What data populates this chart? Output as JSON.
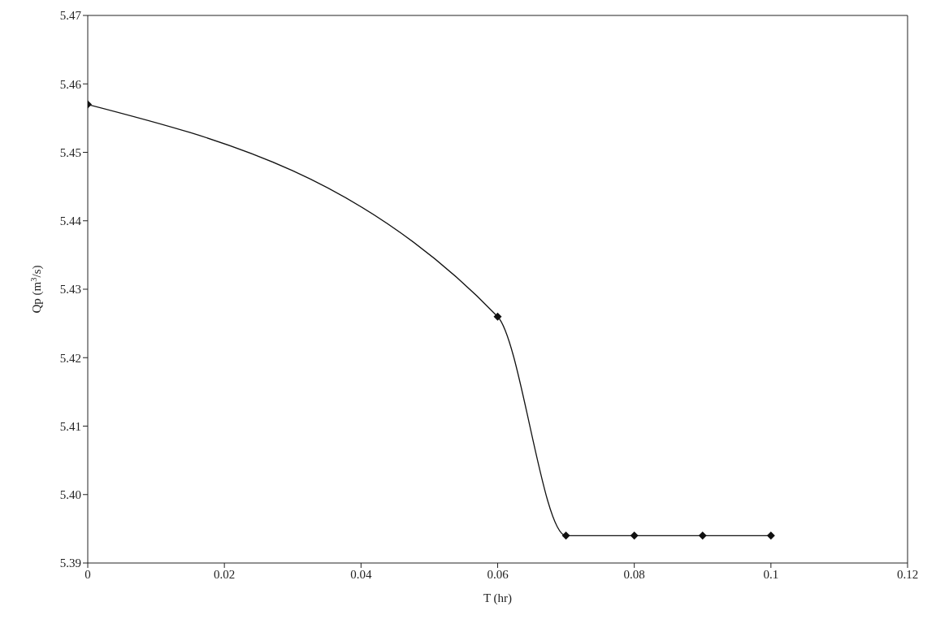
{
  "chart_data": {
    "type": "line",
    "xlabel": "T (hr)",
    "ylabel": "Qp (m$^{3}$/s)",
    "x": [
      0,
      0.06,
      0.07,
      0.08,
      0.09,
      0.1
    ],
    "series": [
      {
        "color": "#111111",
        "values": [
          5.457,
          5.426,
          5.394,
          5.394,
          5.394,
          5.394
        ]
      }
    ],
    "xlim": [
      0,
      0.12
    ],
    "xticks": [
      0,
      0.02,
      0.04,
      0.06,
      0.08,
      {
        "value": 0.1,
        "label": "0.1"
      },
      0.12
    ],
    "ylim": [
      5.39,
      5.47
    ],
    "yticks": [
      {
        "value": 5.39,
        "label": "5.39"
      },
      {
        "value": 5.4,
        "label": "5.40"
      },
      {
        "value": 5.41,
        "label": "5.41"
      },
      {
        "value": 5.42,
        "label": "5.42"
      },
      {
        "value": 5.43,
        "label": "5.43"
      },
      {
        "value": 5.44,
        "label": "5.44"
      },
      {
        "value": 5.45,
        "label": "5.45"
      },
      {
        "value": 5.46,
        "label": "5.46"
      },
      {
        "value": 5.47,
        "label": "5.47"
      }
    ],
    "grid": false,
    "legend": false,
    "marker": "diamond",
    "line_style": "solid"
  }
}
